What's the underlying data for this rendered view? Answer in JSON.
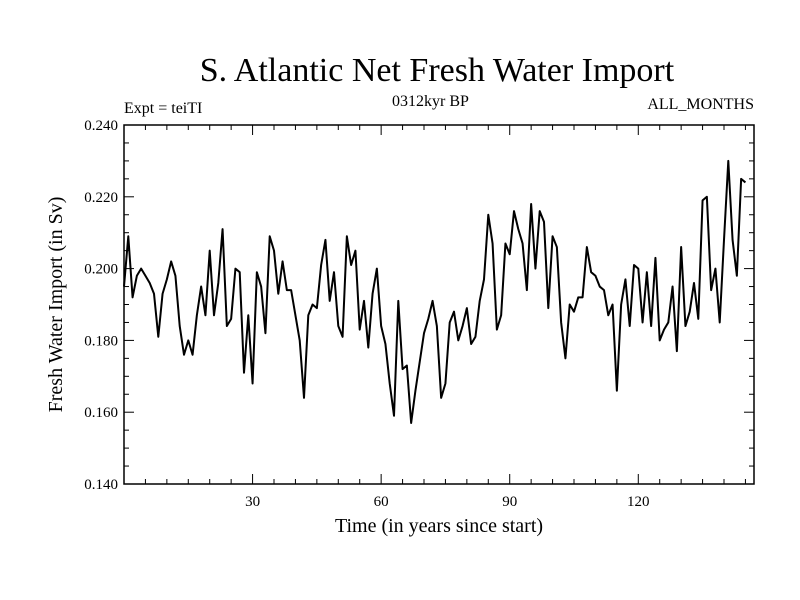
{
  "chart_data": {
    "type": "line",
    "title": "S. Atlantic Net Fresh Water Import",
    "subtitle_left": "Expt = teiTI",
    "subtitle_center": "0312kyr BP",
    "subtitle_right": "ALL_MONTHS",
    "xlabel": "Time (in years since start)",
    "ylabel": "Fresh Water Import (in Sv)",
    "xlim": [
      0,
      147
    ],
    "ylim": [
      0.14,
      0.24
    ],
    "x_ticks": [
      30,
      60,
      90,
      120
    ],
    "x_tick_labels": [
      "30",
      "60",
      "90",
      "120"
    ],
    "y_ticks": [
      0.14,
      0.16,
      0.18,
      0.2,
      0.22,
      0.24
    ],
    "y_tick_labels": [
      "0.140",
      "0.160",
      "0.180",
      "0.200",
      "0.220",
      "0.240"
    ],
    "series": [
      {
        "name": "Fresh Water Import",
        "x_start": 0,
        "x_step": 1,
        "values": [
          0.195,
          0.209,
          0.192,
          0.198,
          0.2,
          0.198,
          0.196,
          0.193,
          0.181,
          0.193,
          0.197,
          0.202,
          0.198,
          0.184,
          0.176,
          0.18,
          0.176,
          0.187,
          0.195,
          0.187,
          0.205,
          0.187,
          0.196,
          0.211,
          0.184,
          0.186,
          0.2,
          0.199,
          0.171,
          0.187,
          0.168,
          0.199,
          0.195,
          0.182,
          0.209,
          0.205,
          0.193,
          0.202,
          0.194,
          0.194,
          0.187,
          0.18,
          0.164,
          0.187,
          0.19,
          0.189,
          0.201,
          0.208,
          0.191,
          0.199,
          0.184,
          0.181,
          0.209,
          0.201,
          0.205,
          0.183,
          0.191,
          0.178,
          0.193,
          0.2,
          0.184,
          0.179,
          0.168,
          0.159,
          0.191,
          0.172,
          0.173,
          0.157,
          0.166,
          0.174,
          0.182,
          0.186,
          0.191,
          0.184,
          0.164,
          0.168,
          0.185,
          0.188,
          0.18,
          0.184,
          0.189,
          0.179,
          0.181,
          0.191,
          0.197,
          0.215,
          0.207,
          0.183,
          0.187,
          0.207,
          0.204,
          0.216,
          0.211,
          0.207,
          0.194,
          0.218,
          0.2,
          0.216,
          0.213,
          0.189,
          0.209,
          0.206,
          0.185,
          0.175,
          0.19,
          0.188,
          0.192,
          0.192,
          0.206,
          0.199,
          0.198,
          0.195,
          0.194,
          0.187,
          0.19,
          0.166,
          0.19,
          0.197,
          0.184,
          0.201,
          0.2,
          0.185,
          0.199,
          0.184,
          0.203,
          0.18,
          0.183,
          0.185,
          0.195,
          0.177,
          0.206,
          0.184,
          0.188,
          0.196,
          0.186,
          0.219,
          0.22,
          0.194,
          0.2,
          0.185,
          0.208,
          0.23,
          0.208,
          0.198,
          0.225,
          0.224
        ]
      }
    ]
  }
}
